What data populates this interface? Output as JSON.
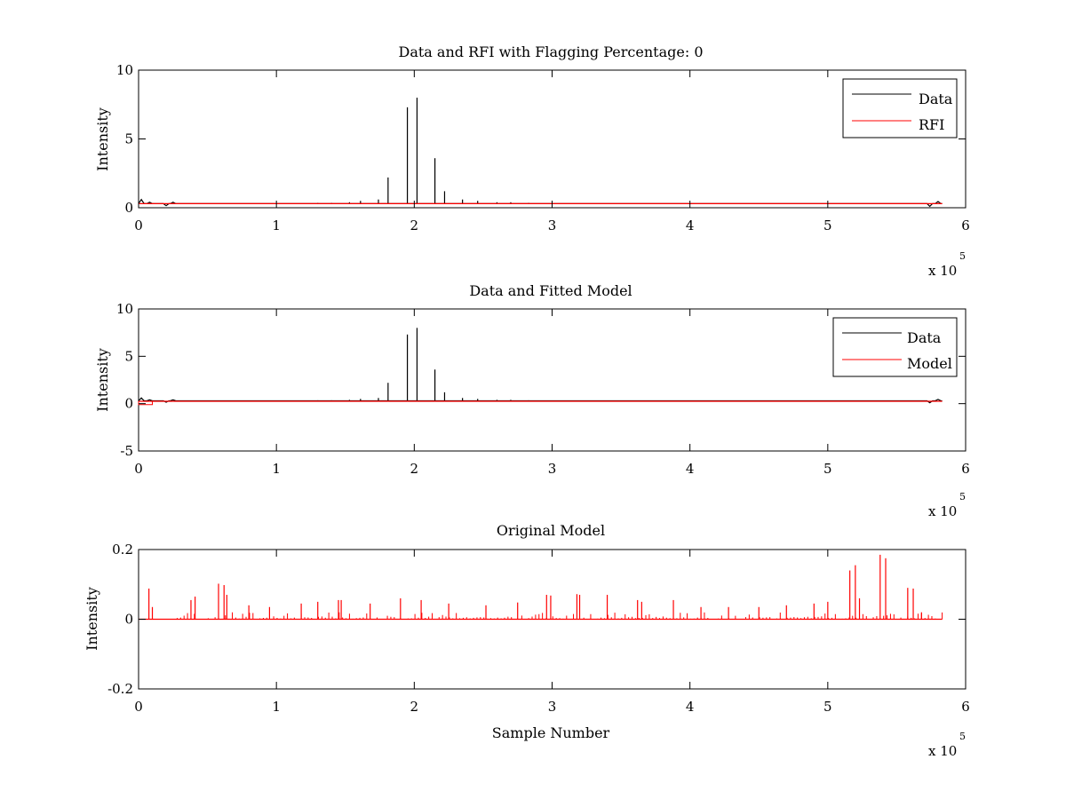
{
  "chart_data": [
    {
      "type": "line",
      "title": "Data and RFI with Flagging Percentage: 0",
      "xlabel": "",
      "ylabel": "Intensity",
      "xlim": [
        0,
        600000
      ],
      "ylim": [
        0,
        10
      ],
      "xticks": [
        0,
        100000,
        200000,
        300000,
        400000,
        500000,
        600000
      ],
      "xtick_labels": [
        "0",
        "1",
        "2",
        "3",
        "4",
        "5",
        "6"
      ],
      "yticks": [
        0,
        5,
        10
      ],
      "ytick_labels": [
        "0",
        "5",
        "10"
      ],
      "x_multiplier": {
        "base": "x 10",
        "exponent": "5"
      },
      "legend": {
        "position": "top-right",
        "entries": [
          "Data",
          "RFI"
        ]
      },
      "grid": false,
      "series": [
        {
          "name": "Data",
          "color": "#000000",
          "baseline": 0.3,
          "start": 0,
          "end": 583000,
          "baseline_bumps": [
            {
              "x": 2000,
              "y": 0.6
            },
            {
              "x": 8000,
              "y": 0.4
            },
            {
              "x": 20000,
              "y": 0.15
            },
            {
              "x": 25000,
              "y": 0.4
            },
            {
              "x": 574000,
              "y": 0.1
            },
            {
              "x": 580000,
              "y": 0.45
            }
          ],
          "spikes": [
            {
              "x": 130000,
              "y": 0.35
            },
            {
              "x": 140000,
              "y": 0.35
            },
            {
              "x": 153000,
              "y": 0.4
            },
            {
              "x": 161000,
              "y": 0.5
            },
            {
              "x": 174000,
              "y": 0.6
            },
            {
              "x": 181000,
              "y": 2.2
            },
            {
              "x": 195000,
              "y": 7.3
            },
            {
              "x": 202000,
              "y": 8.0
            },
            {
              "x": 215000,
              "y": 3.6
            },
            {
              "x": 222000,
              "y": 1.2
            },
            {
              "x": 235000,
              "y": 0.6
            },
            {
              "x": 246000,
              "y": 0.5
            },
            {
              "x": 260000,
              "y": 0.4
            },
            {
              "x": 270000,
              "y": 0.4
            },
            {
              "x": 283000,
              "y": 0.35
            }
          ]
        },
        {
          "name": "RFI",
          "color": "#ff0000",
          "baseline": 0.3,
          "start": 0,
          "end": 583000,
          "spikes": []
        }
      ]
    },
    {
      "type": "line",
      "title": "Data and Fitted Model",
      "xlabel": "",
      "ylabel": "Intensity",
      "xlim": [
        0,
        600000
      ],
      "ylim": [
        -5,
        10
      ],
      "xticks": [
        0,
        100000,
        200000,
        300000,
        400000,
        500000,
        600000
      ],
      "xtick_labels": [
        "0",
        "1",
        "2",
        "3",
        "4",
        "5",
        "6"
      ],
      "yticks": [
        -5,
        0,
        5,
        10
      ],
      "ytick_labels": [
        "-5",
        "0",
        "5",
        "10"
      ],
      "x_multiplier": {
        "base": "x 10",
        "exponent": "5"
      },
      "legend": {
        "position": "top-right",
        "entries": [
          "Data",
          "Model"
        ]
      },
      "grid": false,
      "series": [
        {
          "name": "Data",
          "color": "#000000",
          "baseline": 0.3,
          "start": 0,
          "end": 583000,
          "baseline_bumps": [
            {
              "x": 2000,
              "y": 0.6
            },
            {
              "x": 8000,
              "y": 0.4
            },
            {
              "x": 20000,
              "y": 0.15
            },
            {
              "x": 25000,
              "y": 0.4
            },
            {
              "x": 574000,
              "y": 0.1
            },
            {
              "x": 580000,
              "y": 0.45
            }
          ],
          "spikes": [
            {
              "x": 130000,
              "y": 0.35
            },
            {
              "x": 140000,
              "y": 0.35
            },
            {
              "x": 153000,
              "y": 0.4
            },
            {
              "x": 161000,
              "y": 0.5
            },
            {
              "x": 174000,
              "y": 0.6
            },
            {
              "x": 181000,
              "y": 2.2
            },
            {
              "x": 195000,
              "y": 7.3
            },
            {
              "x": 202000,
              "y": 8.0
            },
            {
              "x": 215000,
              "y": 3.6
            },
            {
              "x": 222000,
              "y": 1.2
            },
            {
              "x": 235000,
              "y": 0.6
            },
            {
              "x": 246000,
              "y": 0.5
            },
            {
              "x": 260000,
              "y": 0.4
            },
            {
              "x": 270000,
              "y": 0.4
            },
            {
              "x": 283000,
              "y": 0.35
            }
          ]
        },
        {
          "name": "Model",
          "color": "#ff0000",
          "baseline": 0.25,
          "start": 0,
          "end": 583000,
          "step_segments": [
            {
              "x0": 0,
              "x1": 10000,
              "y": -0.1
            }
          ],
          "spikes": []
        }
      ]
    },
    {
      "type": "line",
      "title": "Original Model",
      "xlabel": "Sample Number",
      "ylabel": "Intensity",
      "xlim": [
        0,
        600000
      ],
      "ylim": [
        -0.2,
        0.2
      ],
      "xticks": [
        0,
        100000,
        200000,
        300000,
        400000,
        500000,
        600000
      ],
      "xtick_labels": [
        "0",
        "1",
        "2",
        "3",
        "4",
        "5",
        "6"
      ],
      "yticks": [
        -0.2,
        0,
        0.2
      ],
      "ytick_labels": [
        "-0.2",
        "0",
        "0.2"
      ],
      "x_multiplier": {
        "base": "x 10",
        "exponent": "5"
      },
      "grid": false,
      "series": [
        {
          "color": "#ff0000",
          "baseline": 0.0,
          "start": 0,
          "end": 583000,
          "spikes": [
            {
              "x": 7500,
              "y": 0.088
            },
            {
              "x": 10000,
              "y": 0.035
            },
            {
              "x": 38000,
              "y": 0.055
            },
            {
              "x": 41000,
              "y": 0.065
            },
            {
              "x": 58000,
              "y": 0.102
            },
            {
              "x": 62000,
              "y": 0.098
            },
            {
              "x": 64000,
              "y": 0.07
            },
            {
              "x": 80000,
              "y": 0.04
            },
            {
              "x": 95000,
              "y": 0.035
            },
            {
              "x": 118000,
              "y": 0.045
            },
            {
              "x": 130000,
              "y": 0.05
            },
            {
              "x": 145000,
              "y": 0.055
            },
            {
              "x": 147000,
              "y": 0.055
            },
            {
              "x": 168000,
              "y": 0.045
            },
            {
              "x": 190000,
              "y": 0.06
            },
            {
              "x": 205000,
              "y": 0.055
            },
            {
              "x": 225000,
              "y": 0.045
            },
            {
              "x": 252000,
              "y": 0.04
            },
            {
              "x": 275000,
              "y": 0.048
            },
            {
              "x": 296000,
              "y": 0.07
            },
            {
              "x": 299000,
              "y": 0.068
            },
            {
              "x": 318000,
              "y": 0.072
            },
            {
              "x": 320000,
              "y": 0.07
            },
            {
              "x": 340000,
              "y": 0.07
            },
            {
              "x": 362000,
              "y": 0.055
            },
            {
              "x": 365000,
              "y": 0.05
            },
            {
              "x": 388000,
              "y": 0.055
            },
            {
              "x": 408000,
              "y": 0.035
            },
            {
              "x": 428000,
              "y": 0.035
            },
            {
              "x": 450000,
              "y": 0.035
            },
            {
              "x": 470000,
              "y": 0.04
            },
            {
              "x": 490000,
              "y": 0.045
            },
            {
              "x": 500000,
              "y": 0.05
            },
            {
              "x": 516000,
              "y": 0.14
            },
            {
              "x": 520000,
              "y": 0.155
            },
            {
              "x": 523000,
              "y": 0.06
            },
            {
              "x": 538000,
              "y": 0.185
            },
            {
              "x": 542000,
              "y": 0.175
            },
            {
              "x": 558000,
              "y": 0.09
            },
            {
              "x": 562000,
              "y": 0.088
            },
            {
              "x": 568000,
              "y": 0.02
            }
          ],
          "noise_band": {
            "x0": 28000,
            "x1": 583000,
            "max": 0.02
          }
        }
      ]
    }
  ]
}
